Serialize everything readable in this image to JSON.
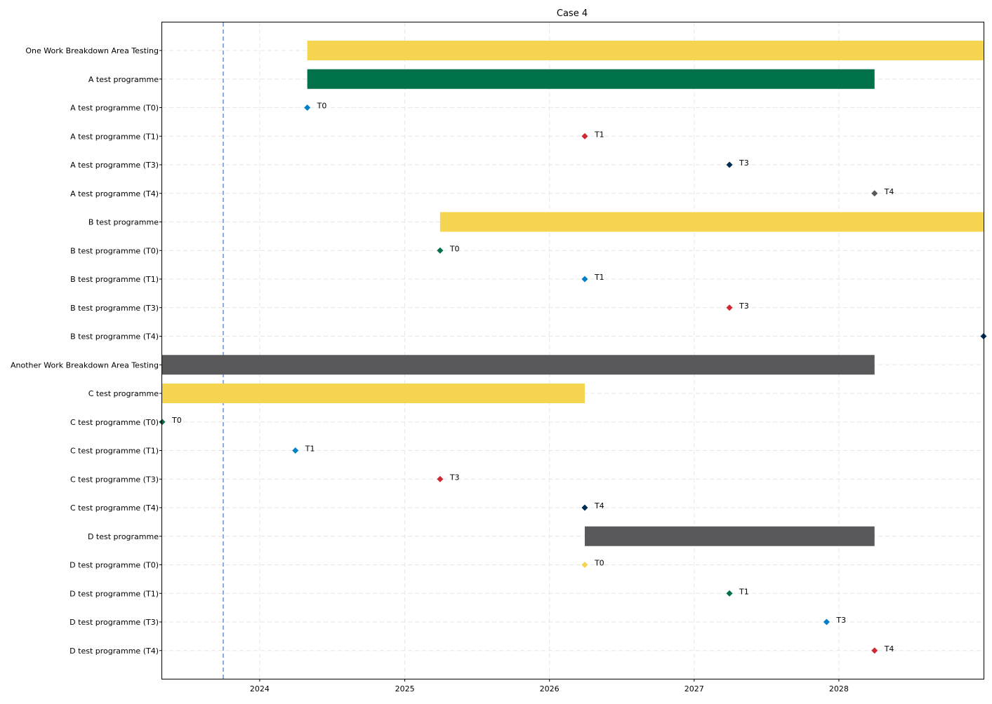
{
  "chart_data": {
    "type": "gantt",
    "title": "Case 4",
    "xlabel": "",
    "ylabel": "",
    "xlim": [
      "2023-04-30",
      "2028-12-31"
    ],
    "x_ticks": [
      "2024",
      "2025",
      "2026",
      "2027",
      "2028"
    ],
    "grid": true,
    "today_marker": "2023-10-01",
    "colors": {
      "yellow": "#F5D44F",
      "green": "#007149",
      "blue": "#0080C6",
      "red": "#CF2733",
      "navy": "#002D53",
      "grey": "#59595B",
      "today_line": "#6B8FE8"
    },
    "rows": [
      {
        "label": "One Work Breakdown Area Testing",
        "kind": "bar",
        "start": "2024-04-30",
        "end": "2028-12-31",
        "color": "#F5D44F"
      },
      {
        "label": "A test programme",
        "kind": "bar",
        "start": "2024-04-30",
        "end": "2028-03-31",
        "color": "#007149"
      },
      {
        "label": "A test programme (T0)",
        "kind": "milestone",
        "date": "2024-04-30",
        "tag": "T0",
        "color": "#0080C6"
      },
      {
        "label": "A test programme (T1)",
        "kind": "milestone",
        "date": "2026-03-31",
        "tag": "T1",
        "color": "#CF2733"
      },
      {
        "label": "A test programme (T3)",
        "kind": "milestone",
        "date": "2027-03-31",
        "tag": "T3",
        "color": "#002D53"
      },
      {
        "label": "A test programme (T4)",
        "kind": "milestone",
        "date": "2028-03-31",
        "tag": "T4",
        "color": "#59595B"
      },
      {
        "label": "B test programme",
        "kind": "bar",
        "start": "2025-03-31",
        "end": "2028-12-31",
        "color": "#F5D44F"
      },
      {
        "label": "B test programme (T0)",
        "kind": "milestone",
        "date": "2025-03-31",
        "tag": "T0",
        "color": "#007149"
      },
      {
        "label": "B test programme (T1)",
        "kind": "milestone",
        "date": "2026-03-31",
        "tag": "T1",
        "color": "#0080C6"
      },
      {
        "label": "B test programme (T3)",
        "kind": "milestone",
        "date": "2027-03-31",
        "tag": "T3",
        "color": "#CF2733"
      },
      {
        "label": "B test programme (T4)",
        "kind": "milestone",
        "date": "2028-12-31",
        "tag": "",
        "color": "#002D53"
      },
      {
        "label": "Another Work Breakdown Area Testing",
        "kind": "bar",
        "start": "2023-04-30",
        "end": "2028-03-31",
        "color": "#59595B"
      },
      {
        "label": "C test programme",
        "kind": "bar",
        "start": "2023-04-30",
        "end": "2026-03-31",
        "color": "#F5D44F"
      },
      {
        "label": "C test programme (T0)",
        "kind": "milestone",
        "date": "2023-04-30",
        "tag": "T0",
        "color": "#007149"
      },
      {
        "label": "C test programme (T1)",
        "kind": "milestone",
        "date": "2024-03-31",
        "tag": "T1",
        "color": "#0080C6"
      },
      {
        "label": "C test programme (T3)",
        "kind": "milestone",
        "date": "2025-03-31",
        "tag": "T3",
        "color": "#CF2733"
      },
      {
        "label": "C test programme (T4)",
        "kind": "milestone",
        "date": "2026-03-31",
        "tag": "T4",
        "color": "#002D53"
      },
      {
        "label": "D test programme",
        "kind": "bar",
        "start": "2026-03-31",
        "end": "2028-03-31",
        "color": "#59595B"
      },
      {
        "label": "D test programme (T0)",
        "kind": "milestone",
        "date": "2026-03-31",
        "tag": "T0",
        "color": "#F5D44F"
      },
      {
        "label": "D test programme (T1)",
        "kind": "milestone",
        "date": "2027-03-31",
        "tag": "T1",
        "color": "#007149"
      },
      {
        "label": "D test programme (T3)",
        "kind": "milestone",
        "date": "2027-12-01",
        "tag": "T3",
        "color": "#0080C6"
      },
      {
        "label": "D test programme (T4)",
        "kind": "milestone",
        "date": "2028-03-31",
        "tag": "T4",
        "color": "#CF2733"
      }
    ]
  }
}
